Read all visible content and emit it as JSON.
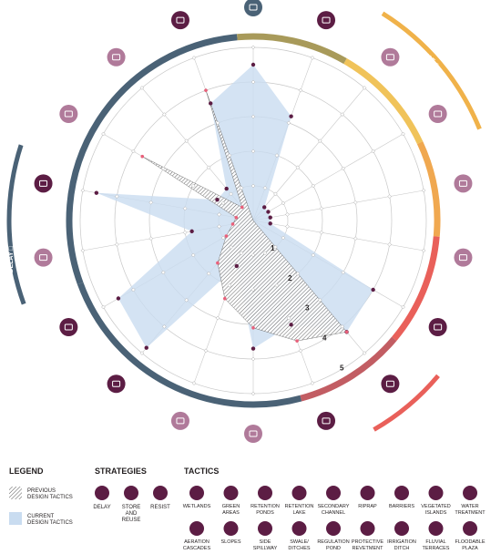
{
  "chart_data": {
    "type": "radar",
    "scale_labels": [
      "1",
      "2",
      "3",
      "4",
      "5"
    ],
    "rmax": 5,
    "axes": [
      {
        "icon": "wetlands-icon",
        "group": "delay",
        "color": "#4a6276",
        "label": "Wetlands"
      },
      {
        "icon": "green-areas-icon",
        "group": "delay",
        "color": "#5c1d44",
        "label": "Green areas"
      },
      {
        "icon": "retention-ponds-icon",
        "group": "store",
        "color": "#b07a9a",
        "label": "Retention ponds"
      },
      {
        "icon": "retention-lake-icon",
        "group": "store",
        "color": "#b07a9a",
        "label": "Retention lake"
      },
      {
        "icon": "secondary-channel-icon",
        "group": "store",
        "color": "#b07a9a",
        "label": "Secondary channel"
      },
      {
        "icon": "riprap-icon",
        "group": "store",
        "color": "#b07a9a",
        "label": "Riprap"
      },
      {
        "icon": "water-treatment-icon",
        "group": "store",
        "color": "#5c1d44",
        "label": "Water treatment"
      },
      {
        "icon": "barriers-icon",
        "group": "resist",
        "color": "#5c1d44",
        "label": "Barriers"
      },
      {
        "icon": "floodable-plaza-icon",
        "group": "resist",
        "color": "#5c1d44",
        "label": "Floodable plaza"
      },
      {
        "icon": "slopes-icon",
        "group": "resist",
        "color": "#b07a9a",
        "label": "Slopes"
      },
      {
        "icon": "protective-revetment-icon",
        "group": "resist",
        "color": "#b07a9a",
        "label": "Protective revetment"
      },
      {
        "icon": "fluvial-terraces-icon",
        "group": "delay",
        "color": "#5c1d44",
        "label": "Fluvial terraces"
      },
      {
        "icon": "irrigation-ditch-icon",
        "group": "delay",
        "color": "#5c1d44",
        "label": "Irrigation ditch"
      },
      {
        "icon": "side-spillway-icon",
        "group": "delay",
        "color": "#b07a9a",
        "label": "Side spillway"
      },
      {
        "icon": "aeration-cascades-icon",
        "group": "delay",
        "color": "#5c1d44",
        "label": "Aeration cascades"
      },
      {
        "icon": "swale-ditches-icon",
        "group": "delay",
        "color": "#b07a9a",
        "label": "Swale / ditches"
      },
      {
        "icon": "regulation-pond-icon",
        "group": "delay",
        "color": "#b07a9a",
        "label": "Regulation pond"
      },
      {
        "icon": "vegetated-islands-icon",
        "group": "delay",
        "color": "#5c1d44",
        "label": "Vegetated islands"
      }
    ],
    "series": [
      {
        "name": "PREVIOUS DESIGN TACTICS",
        "values": [
          0,
          0,
          0,
          0,
          0,
          0,
          0,
          4.2,
          3.7,
          3.1,
          2.4,
          1.6,
          0.9,
          0.6,
          0.5,
          3.7,
          0.5,
          4.0
        ]
      },
      {
        "name": "CURRENT DESIGN TACTICS",
        "values": [
          4.5,
          3.2,
          0.5,
          0.5,
          0.5,
          0.5,
          4.0,
          4.2,
          3.2,
          3.7,
          1.4,
          4.8,
          4.5,
          1.8,
          4.6,
          1.2,
          1.2,
          3.6
        ]
      }
    ],
    "arcs": [
      {
        "label": "STORE AND REUSE",
        "symbol": "○",
        "color": "#f0b24a"
      },
      {
        "label": "RESIST",
        "symbol": "✕",
        "color": "#e9605a"
      },
      {
        "label": "DELAY",
        "symbol": "□",
        "color": "#4a6276"
      }
    ]
  },
  "legend": {
    "title": "LEGEND",
    "previous": "PREVIOUS\nDESIGN TACTICS",
    "current": "CURRENT\nDESIGN TACTICS"
  },
  "strategies": {
    "title": "STRATEGIES",
    "items": [
      {
        "icon": "delay-icon",
        "label": "DELAY"
      },
      {
        "icon": "store-reuse-icon",
        "label": "STORE\nAND\nREUSE"
      },
      {
        "icon": "resist-icon",
        "label": "RESIST"
      }
    ]
  },
  "tactics": {
    "title": "TACTICS",
    "row1": [
      "WETLANDS",
      "GREEN\nAREAS",
      "RETENTION\nPONDS",
      "RETENTION\nLAKE",
      "SECONDARY\nCHANNEL",
      "RIPRAP",
      "BARRIERS",
      "VEGETATED\nISLANDS",
      "WATER\nTREATMENT"
    ],
    "row2": [
      "AERATION\nCASCADES",
      "SLOPES",
      "SIDE\nSPILLWAY",
      "SWALE/\nDITCHES",
      "REGULATION\nPOND",
      "PROTECTIVE\nREVETMENT",
      "IRRIGATION\nDITCH",
      "FLUVIAL\nTERRACES",
      "FLOODABLE\nPLAZA"
    ]
  },
  "colors": {
    "dark": "#5c1d44",
    "light": "#b07a9a",
    "current_fill": "#c9dcf0",
    "ring_delay": "#4a6276",
    "ring_store": "#f0c35a",
    "ring_resist": "#e9605a"
  }
}
